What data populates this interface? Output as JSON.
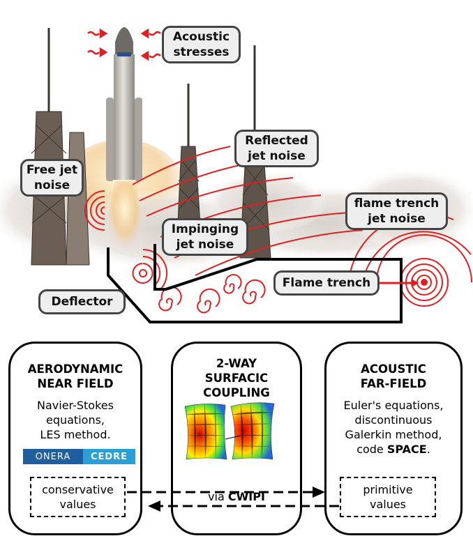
{
  "top": {
    "callouts": {
      "acoustic": "Acoustic\nstresses",
      "free_jet": "Free jet\nnoise",
      "reflected": "Reflected\njet noise",
      "impinging": "Impinging\njet noise",
      "trench_noise": "flame trench\njet noise",
      "flame_trench": "Flame trench",
      "deflector": "Deflector"
    }
  },
  "panels": {
    "left": {
      "title": "AERODYNAMIC\nNEAR FIELD",
      "text": "Navier-Stokes\nequations,\nLES method.",
      "logo_left": "ONERA",
      "logo_right": "CEDRE",
      "box": "conservative\nvalues"
    },
    "middle": {
      "title": "2-WAY\nSURFACIC\nCOUPLING",
      "via": "via ",
      "via_bold": "CWIPI"
    },
    "right": {
      "title": "ACOUSTIC\nFAR-FIELD",
      "text": "Euler's equations,\ndiscontinuous\nGalerkin method,\ncode ",
      "text_bold": "SPACE",
      "text_end": ".",
      "box": "primitive\nvalues"
    }
  },
  "colors": {
    "noise": "#e02020",
    "outline": "#000000",
    "callout_bg": "#eeeeee",
    "callout_border": "#444444"
  }
}
